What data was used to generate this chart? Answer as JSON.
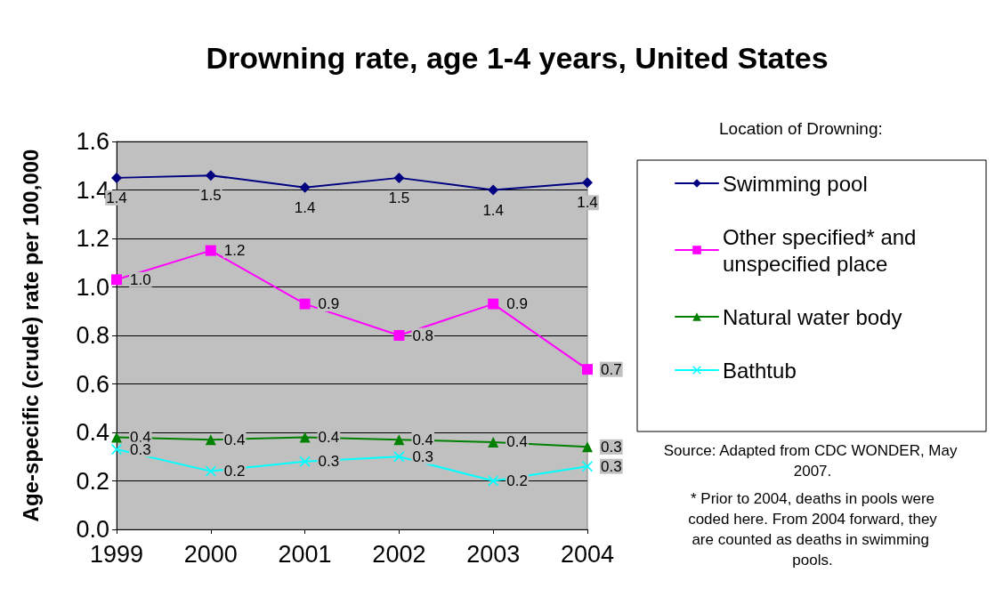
{
  "chart_data": {
    "type": "line",
    "title": "Drowning rate, age 1-4 years, United States",
    "ylabel": "Age-specific (crude) rate per 100,000",
    "legend_title": "Location of Drowning:",
    "categories": [
      "1999",
      "2000",
      "2001",
      "2002",
      "2003",
      "2004"
    ],
    "series": [
      {
        "name": "Swimming pool",
        "color": "#000080",
        "marker": "diamond",
        "values": [
          1.45,
          1.46,
          1.41,
          1.45,
          1.4,
          1.43
        ],
        "value_labels": [
          "1.4",
          "1.5",
          "1.4",
          "1.5",
          "1.4",
          "1.4"
        ]
      },
      {
        "name": "Other specified* and unspecified place",
        "color": "#ff00ff",
        "marker": "square",
        "values": [
          1.03,
          1.15,
          0.93,
          0.8,
          0.93,
          0.66
        ],
        "value_labels": [
          "1.0",
          "1.2",
          "0.9",
          "0.8",
          "0.9",
          "0.7"
        ]
      },
      {
        "name": "Natural water body",
        "color": "#008000",
        "marker": "triangle",
        "values": [
          0.38,
          0.37,
          0.38,
          0.37,
          0.36,
          0.34
        ],
        "value_labels": [
          "0.4",
          "0.4",
          "0.4",
          "0.4",
          "0.4",
          "0.3"
        ]
      },
      {
        "name": "Bathtub",
        "color": "#00ffff",
        "marker": "cross",
        "values": [
          0.33,
          0.24,
          0.28,
          0.3,
          0.2,
          0.26
        ],
        "value_labels": [
          "0.3",
          "0.2",
          "0.3",
          "0.3",
          "0.2",
          "0.3"
        ]
      }
    ],
    "ylim": [
      0,
      1.6
    ],
    "yticks": [
      {
        "value": 0,
        "label": "0.0"
      },
      {
        "value": 0.2,
        "label": "0.2"
      },
      {
        "value": 0.4,
        "label": "0.4"
      },
      {
        "value": 0.6,
        "label": "0.6"
      },
      {
        "value": 0.8,
        "label": "0.8"
      },
      {
        "value": 1,
        "label": "1.0"
      },
      {
        "value": 1.2,
        "label": "1.2"
      },
      {
        "value": 1.4,
        "label": "1.4"
      },
      {
        "value": 1.6,
        "label": "1.6"
      }
    ],
    "grid": "y",
    "legend": "right",
    "annotations": [
      "Source: Adapted from CDC WONDER, May 2007.",
      "* Prior to 2004, deaths in pools were coded here. From 2004 forward, they are counted as deaths in swimming pools."
    ]
  }
}
